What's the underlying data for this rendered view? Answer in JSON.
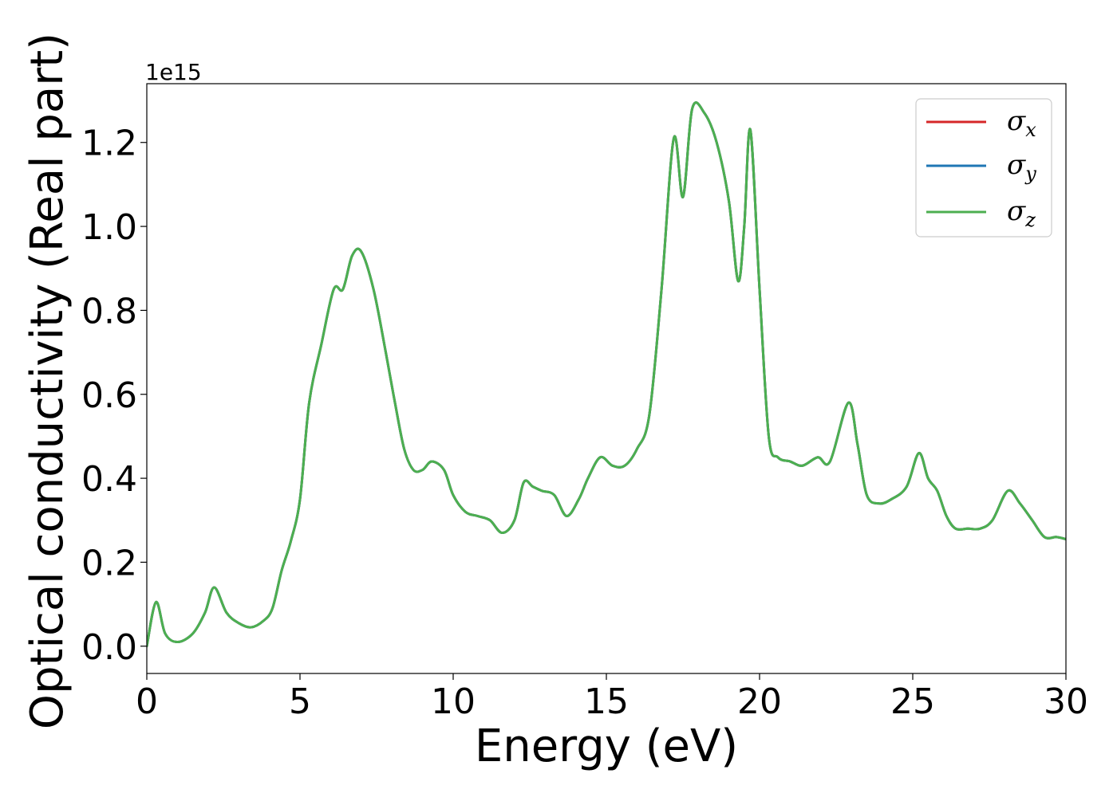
{
  "chart_data": {
    "type": "line",
    "title": "",
    "xlabel": "Energy (eV)",
    "ylabel": "Optical conductivity (Real part)",
    "y_offset_label": "1e15",
    "xlim": [
      0,
      30
    ],
    "ylim": [
      -0.065,
      1.34
    ],
    "x_ticks": [
      0,
      5,
      10,
      15,
      20,
      25,
      30
    ],
    "x_tick_labels": [
      "0",
      "5",
      "10",
      "15",
      "20",
      "25",
      "30"
    ],
    "y_ticks": [
      0.0,
      0.2,
      0.4,
      0.6,
      0.8,
      1.0,
      1.2
    ],
    "y_tick_labels": [
      "0.0",
      "0.2",
      "0.4",
      "0.6",
      "0.8",
      "1.0",
      "1.2"
    ],
    "grid": false,
    "legend_position": "top-right",
    "colors": {
      "sigma_x": "#d62728",
      "sigma_y": "#1f77b4",
      "sigma_z": "#4caf50"
    },
    "x": [
      0,
      0.3,
      0.6,
      1.0,
      1.5,
      1.9,
      2.2,
      2.6,
      3.0,
      3.4,
      3.8,
      4.1,
      4.4,
      4.7,
      5.0,
      5.3,
      5.7,
      6.1,
      6.4,
      6.7,
      7.0,
      7.4,
      7.8,
      8.1,
      8.4,
      8.7,
      9.0,
      9.3,
      9.7,
      10.0,
      10.4,
      10.8,
      11.2,
      11.6,
      12.0,
      12.3,
      12.6,
      12.9,
      13.3,
      13.7,
      14.1,
      14.4,
      14.8,
      15.2,
      15.6,
      16.0,
      16.4,
      16.8,
      17.2,
      17.5,
      17.8,
      18.2,
      18.6,
      19.0,
      19.3,
      19.5,
      19.7,
      20.0,
      20.3,
      20.6,
      21.0,
      21.4,
      21.9,
      22.3,
      22.9,
      23.2,
      23.5,
      23.9,
      24.3,
      24.8,
      25.2,
      25.5,
      25.8,
      26.1,
      26.4,
      26.8,
      27.2,
      27.6,
      28.1,
      28.5,
      28.9,
      29.3,
      29.7,
      30.0
    ],
    "series": [
      {
        "name": "σx",
        "values": [
          0.0,
          0.105,
          0.03,
          0.01,
          0.03,
          0.08,
          0.14,
          0.08,
          0.055,
          0.045,
          0.06,
          0.09,
          0.18,
          0.25,
          0.35,
          0.58,
          0.72,
          0.85,
          0.85,
          0.93,
          0.94,
          0.85,
          0.7,
          0.58,
          0.47,
          0.42,
          0.42,
          0.44,
          0.42,
          0.36,
          0.32,
          0.31,
          0.3,
          0.27,
          0.3,
          0.39,
          0.38,
          0.37,
          0.36,
          0.31,
          0.35,
          0.4,
          0.45,
          0.43,
          0.43,
          0.47,
          0.55,
          0.85,
          1.21,
          1.07,
          1.28,
          1.27,
          1.2,
          1.06,
          0.87,
          1.0,
          1.23,
          0.85,
          0.5,
          0.45,
          0.44,
          0.43,
          0.45,
          0.44,
          0.58,
          0.48,
          0.36,
          0.34,
          0.35,
          0.38,
          0.46,
          0.4,
          0.37,
          0.31,
          0.28,
          0.28,
          0.28,
          0.3,
          0.37,
          0.34,
          0.3,
          0.26,
          0.26,
          0.255
        ]
      },
      {
        "name": "σy",
        "values": [
          0.0,
          0.105,
          0.03,
          0.01,
          0.03,
          0.08,
          0.14,
          0.08,
          0.055,
          0.045,
          0.06,
          0.09,
          0.18,
          0.25,
          0.35,
          0.58,
          0.72,
          0.85,
          0.85,
          0.93,
          0.94,
          0.85,
          0.7,
          0.58,
          0.47,
          0.42,
          0.42,
          0.44,
          0.42,
          0.36,
          0.32,
          0.31,
          0.3,
          0.27,
          0.3,
          0.39,
          0.38,
          0.37,
          0.36,
          0.31,
          0.35,
          0.4,
          0.45,
          0.43,
          0.43,
          0.47,
          0.55,
          0.85,
          1.21,
          1.07,
          1.28,
          1.27,
          1.2,
          1.06,
          0.87,
          1.0,
          1.23,
          0.85,
          0.5,
          0.45,
          0.44,
          0.43,
          0.45,
          0.44,
          0.58,
          0.48,
          0.36,
          0.34,
          0.35,
          0.38,
          0.46,
          0.4,
          0.37,
          0.31,
          0.28,
          0.28,
          0.28,
          0.3,
          0.37,
          0.34,
          0.3,
          0.26,
          0.26,
          0.255
        ]
      },
      {
        "name": "σz",
        "values": [
          0.0,
          0.105,
          0.03,
          0.01,
          0.03,
          0.08,
          0.14,
          0.08,
          0.055,
          0.045,
          0.06,
          0.09,
          0.18,
          0.25,
          0.35,
          0.58,
          0.72,
          0.85,
          0.85,
          0.93,
          0.94,
          0.85,
          0.7,
          0.58,
          0.47,
          0.42,
          0.42,
          0.44,
          0.42,
          0.36,
          0.32,
          0.31,
          0.3,
          0.27,
          0.3,
          0.39,
          0.38,
          0.37,
          0.36,
          0.31,
          0.35,
          0.4,
          0.45,
          0.43,
          0.43,
          0.47,
          0.55,
          0.85,
          1.21,
          1.07,
          1.28,
          1.27,
          1.2,
          1.06,
          0.87,
          1.0,
          1.23,
          0.85,
          0.5,
          0.45,
          0.44,
          0.43,
          0.45,
          0.44,
          0.58,
          0.48,
          0.36,
          0.34,
          0.35,
          0.38,
          0.46,
          0.4,
          0.37,
          0.31,
          0.28,
          0.28,
          0.28,
          0.3,
          0.37,
          0.34,
          0.3,
          0.26,
          0.26,
          0.255
        ]
      }
    ]
  }
}
